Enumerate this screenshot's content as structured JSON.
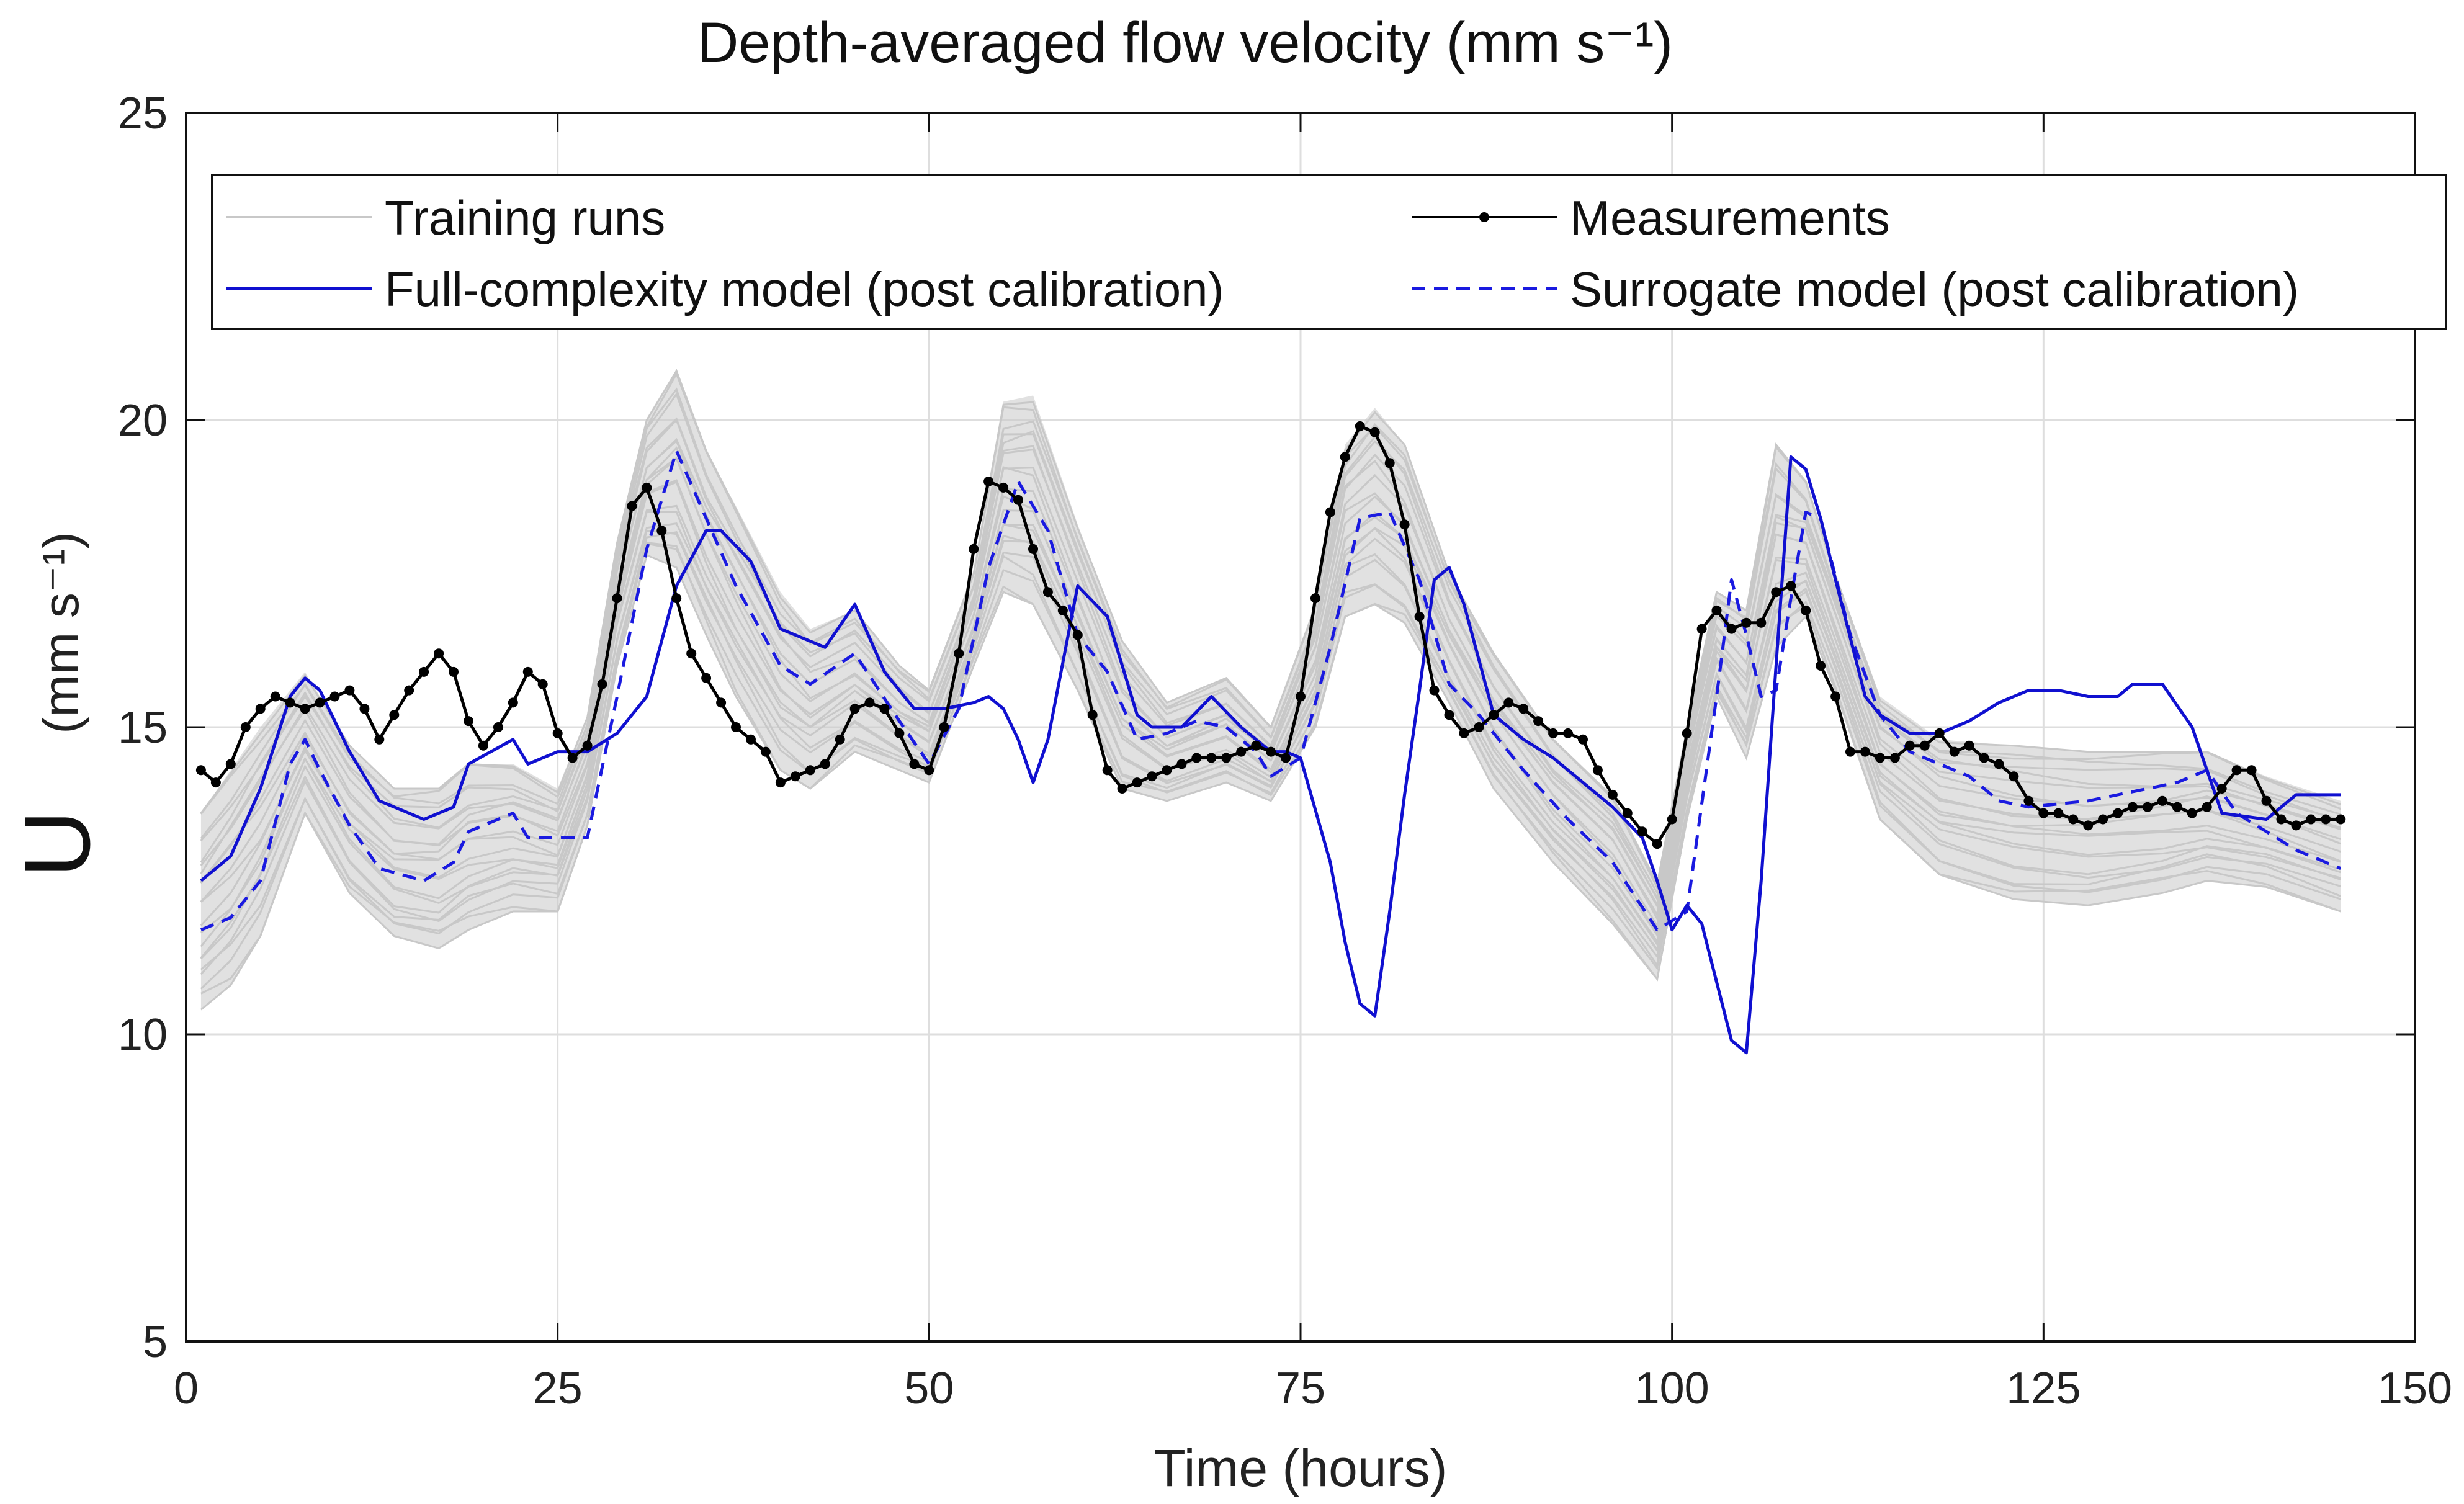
{
  "chart_data": {
    "type": "line",
    "title": "Depth-averaged flow velocity (mm s⁻¹)",
    "xlabel": "Time (hours)",
    "ylabel_main": "U",
    "ylabel_units": "(mm s⁻¹)",
    "xlim": [
      0,
      150
    ],
    "ylim": [
      5,
      25
    ],
    "xticks": [
      0,
      25,
      50,
      75,
      100,
      125,
      150
    ],
    "yticks": [
      5,
      10,
      15,
      20,
      25
    ],
    "grid": true,
    "legend_placement": "top",
    "colors": {
      "training": "#c8c8c8",
      "full": "#1010d0",
      "surrogate": "#1a1ae0",
      "measurements": "#000000"
    },
    "series": [
      {
        "name": "Training runs",
        "style": "band",
        "x": [
          1,
          3,
          5,
          8,
          11,
          14,
          17,
          19,
          22,
          25,
          27,
          29,
          31,
          33,
          35,
          37,
          40,
          42,
          45,
          48,
          50,
          53,
          55,
          57,
          60,
          63,
          66,
          70,
          73,
          76,
          78,
          80,
          82,
          85,
          88,
          92,
          96,
          99,
          101,
          103,
          105,
          107,
          109,
          111,
          114,
          118,
          123,
          128,
          133,
          136,
          140,
          145
        ],
        "upper": [
          13.6,
          14.3,
          15.0,
          15.9,
          14.7,
          14.0,
          14.0,
          14.4,
          14.4,
          14.0,
          15.2,
          18.0,
          20.0,
          20.8,
          19.5,
          18.6,
          17.2,
          16.6,
          16.9,
          16.0,
          15.6,
          17.5,
          20.3,
          20.4,
          18.3,
          16.4,
          15.4,
          15.8,
          15.0,
          17.0,
          19.6,
          20.2,
          19.6,
          17.5,
          16.2,
          14.8,
          13.9,
          12.5,
          15.0,
          17.2,
          16.9,
          19.6,
          19.0,
          17.5,
          15.5,
          14.8,
          14.7,
          14.6,
          14.6,
          14.6,
          14.2,
          13.8
        ],
        "lower": [
          10.4,
          10.8,
          11.6,
          13.6,
          12.3,
          11.6,
          11.4,
          11.7,
          12.0,
          12.0,
          13.4,
          16.0,
          17.8,
          17.6,
          16.5,
          15.5,
          14.3,
          14.0,
          14.6,
          14.3,
          14.1,
          16.0,
          17.2,
          17.0,
          15.6,
          14.0,
          13.8,
          14.1,
          13.8,
          15.0,
          16.8,
          17.0,
          16.7,
          15.4,
          14.0,
          12.8,
          11.8,
          10.9,
          13.5,
          15.5,
          14.5,
          16.3,
          16.8,
          15.6,
          13.5,
          12.6,
          12.2,
          12.1,
          12.3,
          12.5,
          12.4,
          12.0
        ]
      },
      {
        "name": "Measurements",
        "style": "line-markers",
        "x": [
          1,
          2,
          3,
          4,
          5,
          6,
          7,
          8,
          9,
          10,
          11,
          12,
          13,
          14,
          15,
          16,
          17,
          18,
          19,
          20,
          21,
          22,
          23,
          24,
          25,
          26,
          27,
          28,
          29,
          30,
          31,
          32,
          33,
          34,
          35,
          36,
          37,
          38,
          39,
          40,
          41,
          42,
          43,
          44,
          45,
          46,
          47,
          48,
          49,
          50,
          51,
          52,
          53,
          54,
          55,
          56,
          57,
          58,
          59,
          60,
          61,
          62,
          63,
          64,
          65,
          66,
          67,
          68,
          69,
          70,
          71,
          72,
          73,
          74,
          75,
          76,
          77,
          78,
          79,
          80,
          81,
          82,
          83,
          84,
          85,
          86,
          87,
          88,
          89,
          90,
          91,
          92,
          93,
          94,
          95,
          96,
          97,
          98,
          99,
          100,
          101,
          102,
          103,
          104,
          105,
          106,
          107,
          108,
          109,
          110,
          111,
          112,
          113,
          114,
          115,
          116,
          117,
          118,
          119,
          120,
          121,
          122,
          123,
          124,
          125,
          126,
          127,
          128,
          129,
          130,
          131,
          132,
          133,
          134,
          135,
          136,
          137,
          138,
          139,
          140,
          141,
          142,
          143,
          144,
          145
        ],
        "y": [
          14.3,
          14.1,
          14.4,
          15.0,
          15.3,
          15.5,
          15.4,
          15.3,
          15.4,
          15.5,
          15.6,
          15.3,
          14.8,
          15.2,
          15.6,
          15.9,
          16.2,
          15.9,
          15.1,
          14.7,
          15.0,
          15.4,
          15.9,
          15.7,
          14.9,
          14.5,
          14.7,
          15.7,
          17.1,
          18.6,
          18.9,
          18.2,
          17.1,
          16.2,
          15.8,
          15.4,
          15.0,
          14.8,
          14.6,
          14.1,
          14.2,
          14.3,
          14.4,
          14.8,
          15.3,
          15.4,
          15.3,
          14.9,
          14.4,
          14.3,
          15.0,
          16.2,
          17.9,
          19.0,
          18.9,
          18.7,
          17.9,
          17.2,
          16.9,
          16.5,
          15.2,
          14.3,
          14.0,
          14.1,
          14.2,
          14.3,
          14.4,
          14.5,
          14.5,
          14.5,
          14.6,
          14.7,
          14.6,
          14.5,
          15.5,
          17.1,
          18.5,
          19.4,
          19.9,
          19.8,
          19.3,
          18.3,
          16.8,
          15.6,
          15.2,
          14.9,
          15.0,
          15.2,
          15.4,
          15.3,
          15.1,
          14.9,
          14.9,
          14.8,
          14.3,
          13.9,
          13.6,
          13.3,
          13.1,
          13.5,
          14.9,
          16.6,
          16.9,
          16.6,
          16.7,
          16.7,
          17.2,
          17.3,
          16.9,
          16.0,
          15.5,
          14.6,
          14.6,
          14.5,
          14.5,
          14.7,
          14.7,
          14.9,
          14.6,
          14.7,
          14.5,
          14.4,
          14.2,
          13.8,
          13.6,
          13.6,
          13.5,
          13.4,
          13.5,
          13.6,
          13.7,
          13.7,
          13.8,
          13.7,
          13.6,
          13.7,
          14.0,
          14.3,
          14.3,
          13.8,
          13.5,
          13.4,
          13.5,
          13.5,
          13.5
        ]
      },
      {
        "name": "Full-complexity model (post calibration)",
        "style": "solid",
        "x": [
          1,
          3,
          5,
          7,
          8,
          9,
          11,
          13,
          16,
          18,
          19,
          22,
          23,
          25,
          27,
          29,
          31,
          33,
          35,
          36,
          38,
          40,
          41,
          43,
          45,
          47,
          49,
          51,
          53,
          54,
          55,
          56,
          57,
          58,
          60,
          62,
          64,
          65,
          67,
          69,
          71,
          73,
          74,
          75,
          77,
          78,
          79,
          80,
          81,
          82,
          83,
          84,
          85,
          86,
          88,
          90,
          92,
          94,
          96,
          98,
          99,
          100,
          101,
          102,
          104,
          105,
          106,
          107,
          108,
          109,
          110,
          111,
          113,
          114,
          116,
          118,
          120,
          122,
          124,
          126,
          128,
          130,
          131,
          133,
          135,
          137,
          140,
          142,
          145
        ],
        "y": [
          12.5,
          12.9,
          14.0,
          15.5,
          15.8,
          15.6,
          14.6,
          13.8,
          13.5,
          13.7,
          14.4,
          14.8,
          14.4,
          14.6,
          14.6,
          14.9,
          15.5,
          17.3,
          18.2,
          18.2,
          17.7,
          16.6,
          16.5,
          16.3,
          17.0,
          15.9,
          15.3,
          15.3,
          15.4,
          15.5,
          15.3,
          14.8,
          14.1,
          14.8,
          17.3,
          16.8,
          15.2,
          15.0,
          15.0,
          15.5,
          15.0,
          14.6,
          14.6,
          14.5,
          12.8,
          11.5,
          10.5,
          10.3,
          12.0,
          13.9,
          15.6,
          17.4,
          17.6,
          17.0,
          15.2,
          14.8,
          14.5,
          14.1,
          13.7,
          13.2,
          12.5,
          11.7,
          12.1,
          11.8,
          9.9,
          9.7,
          12.5,
          16.0,
          19.4,
          19.2,
          18.4,
          17.4,
          15.5,
          15.2,
          14.9,
          14.9,
          15.1,
          15.4,
          15.6,
          15.6,
          15.5,
          15.5,
          15.7,
          15.7,
          15.0,
          13.6,
          13.5,
          13.9,
          13.9
        ]
      },
      {
        "name": "Surrogate model (post calibration)",
        "style": "dashed",
        "x": [
          1,
          3,
          5,
          7,
          8,
          9,
          11,
          13,
          16,
          18,
          19,
          22,
          23,
          25,
          27,
          29,
          31,
          33,
          35,
          37,
          40,
          42,
          45,
          48,
          50,
          52,
          54,
          56,
          58,
          60,
          62,
          64,
          66,
          68,
          70,
          72,
          73,
          75,
          77,
          79,
          81,
          83,
          85,
          87,
          90,
          93,
          96,
          99,
          101,
          103,
          104,
          105,
          106,
          107,
          108,
          109,
          110,
          112,
          114,
          116,
          118,
          120,
          122,
          124,
          128,
          132,
          134,
          136,
          138,
          140,
          142,
          145
        ],
        "y": [
          11.7,
          11.9,
          12.5,
          14.4,
          14.8,
          14.3,
          13.4,
          12.7,
          12.5,
          12.8,
          13.3,
          13.6,
          13.2,
          13.2,
          13.2,
          15.5,
          17.9,
          19.5,
          18.4,
          17.3,
          16.0,
          15.7,
          16.2,
          15.1,
          14.4,
          15.3,
          17.6,
          19.0,
          18.2,
          16.5,
          15.9,
          14.8,
          14.9,
          15.1,
          15.0,
          14.6,
          14.2,
          14.5,
          16.3,
          18.4,
          18.5,
          17.4,
          15.7,
          15.2,
          14.3,
          13.5,
          12.8,
          11.7,
          12.0,
          15.5,
          17.4,
          16.5,
          15.5,
          15.6,
          17.1,
          18.5,
          18.4,
          16.5,
          15.2,
          14.6,
          14.4,
          14.2,
          13.8,
          13.7,
          13.8,
          14.0,
          14.1,
          14.3,
          13.6,
          13.3,
          13.0,
          12.7
        ]
      }
    ]
  }
}
